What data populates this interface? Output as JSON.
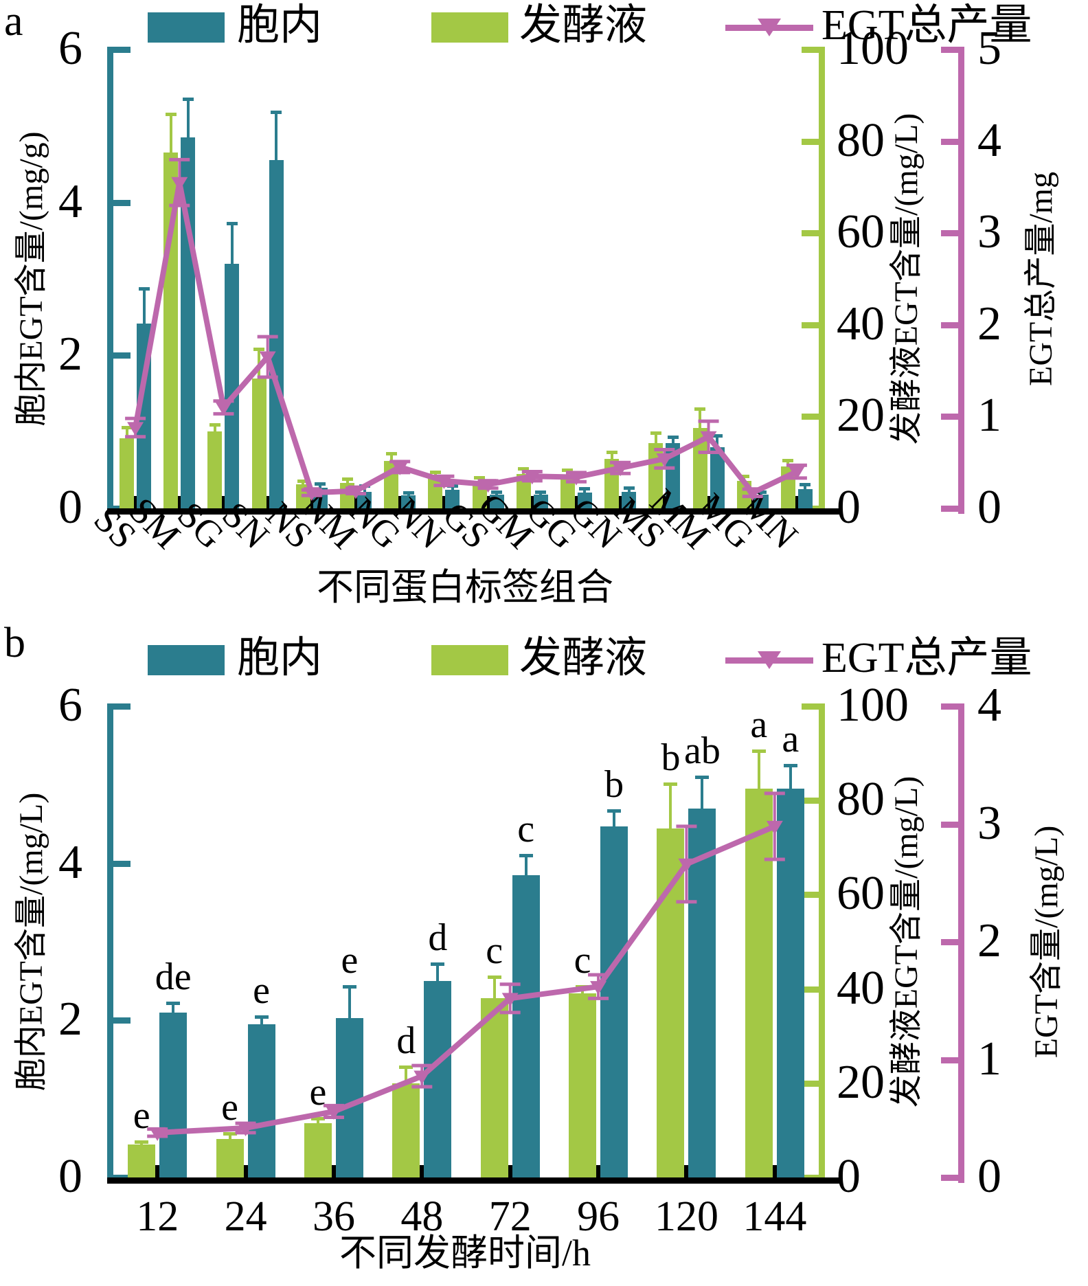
{
  "colors": {
    "intracellular": "#2b7d8e",
    "broth": "#a3c845",
    "total": "#bd68ac",
    "axis_black": "#000000"
  },
  "panels": [
    {
      "panel_label": "a",
      "legend": {
        "intracellular": "胞内",
        "broth": "发酵液",
        "total": "EGT总产量"
      },
      "axes": {
        "left": {
          "title": "胞内EGT含量/(mg/g)",
          "ticks": [
            0,
            2,
            4,
            6
          ],
          "max": 6
        },
        "right_green": {
          "title": "发酵液EGT含量/(mg/L)",
          "ticks": [
            0,
            20,
            40,
            60,
            80,
            100
          ],
          "max": 100
        },
        "right_purple": {
          "title": "EGT总产量/mg",
          "ticks": [
            0,
            1,
            2,
            3,
            4,
            5
          ],
          "max": 5
        },
        "x": {
          "title": "不同蛋白标签组合"
        }
      },
      "chart_data": {
        "type": "bar+line",
        "categories": [
          "SS",
          "SM",
          "SG",
          "SN",
          "NS",
          "NM",
          "NG",
          "NN",
          "GS",
          "GM",
          "GG",
          "GN",
          "MS",
          "MM",
          "MG",
          "MN"
        ],
        "series": [
          {
            "key": "broth",
            "name": "发酵液",
            "type": "bar",
            "axis": "right_green",
            "values": [
              15.3,
              77.5,
              16.7,
              28.3,
              5.2,
              5.5,
              10.3,
              6.7,
              5.7,
              7.5,
              7.2,
              10.8,
              14.2,
              17.5,
              6.0,
              9.2
            ],
            "errors": [
              2.3,
              8.5,
              1.5,
              6.5,
              0.8,
              1.0,
              1.7,
              1.2,
              1.0,
              1.2,
              1.2,
              1.5,
              2.2,
              4.2,
              1.0,
              1.3
            ]
          },
          {
            "key": "intracellular",
            "name": "胞内",
            "type": "bar",
            "axis": "left",
            "values": [
              2.42,
              4.85,
              3.2,
              4.55,
              0.27,
              0.22,
              0.17,
              0.24,
              0.18,
              0.18,
              0.21,
              0.22,
              0.85,
              0.8,
              0.18,
              0.25
            ],
            "errors": [
              0.45,
              0.5,
              0.53,
              0.63,
              0.05,
              0.08,
              0.04,
              0.06,
              0.04,
              0.04,
              0.05,
              0.05,
              0.08,
              0.15,
              0.04,
              0.06
            ]
          },
          {
            "key": "total",
            "name": "EGT总产量",
            "type": "line",
            "axis": "right_purple",
            "values": [
              0.88,
              3.55,
              1.1,
              1.65,
              0.17,
              0.19,
              0.45,
              0.3,
              0.26,
              0.35,
              0.34,
              0.44,
              0.54,
              0.78,
              0.17,
              0.4
            ],
            "errors": [
              0.1,
              0.25,
              0.07,
              0.22,
              0.03,
              0.03,
              0.06,
              0.05,
              0.04,
              0.05,
              0.05,
              0.06,
              0.1,
              0.17,
              0.04,
              0.07
            ]
          }
        ]
      }
    },
    {
      "panel_label": "b",
      "legend": {
        "intracellular": "胞内",
        "broth": "发酵液",
        "total": "EGT总产量"
      },
      "axes": {
        "left": {
          "title": "胞内EGT含量/(mg/L)",
          "ticks": [
            0,
            2,
            4,
            6
          ],
          "max": 6
        },
        "right_green": {
          "title": "发酵液EGT含量/(mg/L)",
          "ticks": [
            0,
            20,
            40,
            60,
            80,
            100
          ],
          "max": 100
        },
        "right_purple": {
          "title": "EGT含量/(mg/L)",
          "ticks": [
            0,
            1,
            2,
            3,
            4
          ],
          "max": 4
        },
        "x": {
          "title": "不同发酵时间/h"
        }
      },
      "chart_data": {
        "type": "bar+line",
        "categories": [
          "12",
          "24",
          "36",
          "48",
          "72",
          "96",
          "120",
          "144"
        ],
        "series": [
          {
            "key": "broth",
            "name": "发酵液",
            "type": "bar",
            "axis": "right_green",
            "values": [
              7.0,
              8.2,
              11.5,
              20.0,
              38.0,
              39.0,
              74.0,
              82.5
            ],
            "errors": [
              0.6,
              1.2,
              1.0,
              3.5,
              4.5,
              1.5,
              9.5,
              8.0
            ],
            "letters": [
              "e",
              "e",
              "e",
              "d",
              "c",
              "c",
              "b",
              "a"
            ]
          },
          {
            "key": "intracellular",
            "name": "胞内",
            "type": "bar",
            "axis": "left",
            "values": [
              2.1,
              1.95,
              2.03,
              2.5,
              3.85,
              4.47,
              4.7,
              4.95
            ],
            "errors": [
              0.12,
              0.1,
              0.4,
              0.22,
              0.25,
              0.2,
              0.4,
              0.3
            ],
            "letters": [
              "de",
              "e",
              "e",
              "d",
              "c",
              "b",
              "ab",
              "a"
            ]
          },
          {
            "key": "total",
            "name": "EGT总产量",
            "type": "line",
            "axis": "right_purple",
            "values": [
              0.38,
              0.42,
              0.56,
              0.86,
              1.52,
              1.62,
              2.66,
              2.98
            ],
            "errors": [
              0.03,
              0.04,
              0.05,
              0.09,
              0.12,
              0.1,
              0.32,
              0.28
            ]
          }
        ]
      }
    }
  ]
}
